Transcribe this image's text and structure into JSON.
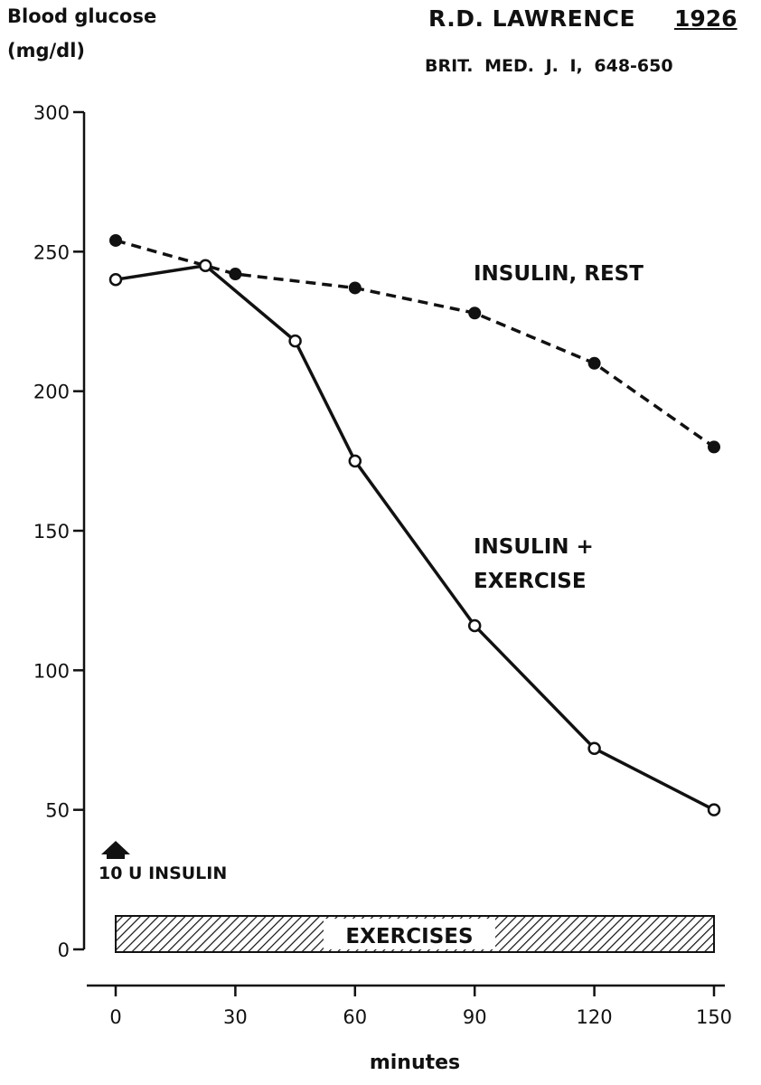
{
  "header": {
    "ylabel_line1": "Blood glucose",
    "ylabel_line2": "(mg/dl)",
    "author": "R.D. LAWRENCE",
    "year": "1926",
    "journal": "BRIT. MED. J. I, 648-650"
  },
  "chart_data": {
    "type": "line",
    "title": "",
    "xlabel": "minutes",
    "ylabel": "Blood glucose (mg/dl)",
    "xlim": [
      0,
      150
    ],
    "ylim": [
      0,
      300
    ],
    "x_ticks": [
      0,
      30,
      60,
      90,
      120,
      150
    ],
    "y_ticks": [
      0,
      50,
      100,
      150,
      200,
      250,
      300
    ],
    "grid": false,
    "series": [
      {
        "name": "INSULIN, REST",
        "style": "dashed",
        "marker": "filled",
        "color": "#111111",
        "x": [
          0,
          30,
          60,
          90,
          120,
          150
        ],
        "y": [
          254,
          242,
          237,
          228,
          210,
          180
        ]
      },
      {
        "name": "INSULIN + EXERCISE",
        "style": "solid",
        "marker": "open",
        "color": "#111111",
        "x": [
          0,
          22.5,
          45,
          60,
          90,
          120,
          150
        ],
        "y": [
          240,
          245,
          218,
          175,
          116,
          72,
          50
        ]
      }
    ],
    "annotations": {
      "rest_label": "INSULIN, REST",
      "exercise_label_line1": "INSULIN +",
      "exercise_label_line2": "EXERCISE",
      "insulin_marker": "10 U INSULIN",
      "exercise_bar": "EXERCISES"
    }
  }
}
